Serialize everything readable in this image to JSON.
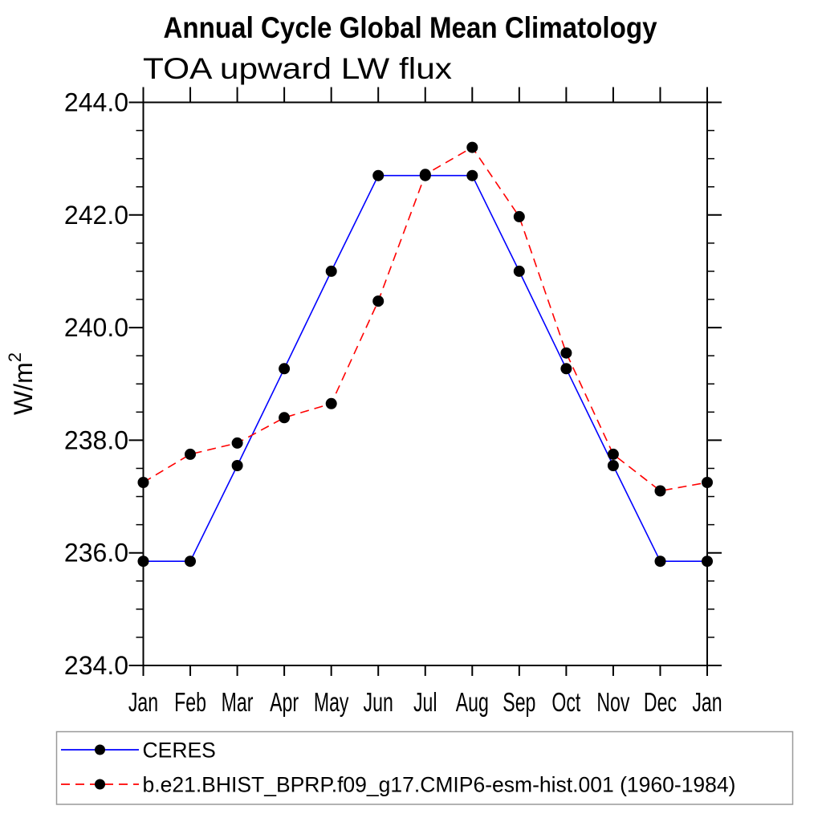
{
  "title": "Annual Cycle Global Mean Climatology",
  "subtitle": "TOA upward LW flux",
  "y_axis": {
    "label_base": "W/m",
    "label_exponent": "2",
    "tick_labels": [
      "234.0",
      "236.0",
      "238.0",
      "240.0",
      "242.0",
      "244.0"
    ],
    "tick_values": [
      234.0,
      236.0,
      238.0,
      240.0,
      242.0,
      244.0
    ],
    "minor_tick_step": 0.5
  },
  "x_axis": {
    "tick_labels": [
      "Jan",
      "Feb",
      "Mar",
      "Apr",
      "May",
      "Jun",
      "Jul",
      "Aug",
      "Sep",
      "Oct",
      "Nov",
      "Dec",
      "Jan"
    ]
  },
  "colors": {
    "background": "#ffffff",
    "axis": "#000000",
    "marker": "#000000",
    "ceres_line": "#0000ff",
    "model_line": "#ff0000",
    "legend_border": "#999999"
  },
  "chart_data": {
    "type": "line",
    "title": "Annual Cycle Global Mean Climatology",
    "subtitle": "TOA upward LW flux",
    "ylabel": "W/m^2",
    "ylim": [
      234.0,
      244.0
    ],
    "grid": false,
    "legend_position": "bottom",
    "categories": [
      "Jan",
      "Feb",
      "Mar",
      "Apr",
      "May",
      "Jun",
      "Jul",
      "Aug",
      "Sep",
      "Oct",
      "Nov",
      "Dec",
      "Jan"
    ],
    "series": [
      {
        "name": "CERES",
        "color": "#0000ff",
        "line_style": "solid",
        "marker": "filled-circle",
        "marker_color": "#000000",
        "values": [
          235.85,
          235.85,
          237.55,
          239.27,
          241.0,
          242.7,
          242.7,
          242.7,
          241.0,
          239.27,
          237.55,
          235.85,
          235.85
        ]
      },
      {
        "name": "b.e21.BHIST_BPRP.f09_g17.CMIP6-esm-hist.001 (1960-1984)",
        "color": "#ff0000",
        "line_style": "dashed",
        "marker": "filled-circle",
        "marker_color": "#000000",
        "values": [
          237.25,
          237.75,
          237.95,
          238.4,
          238.65,
          240.47,
          242.72,
          243.2,
          241.97,
          239.55,
          237.75,
          237.1,
          237.25
        ]
      }
    ]
  }
}
